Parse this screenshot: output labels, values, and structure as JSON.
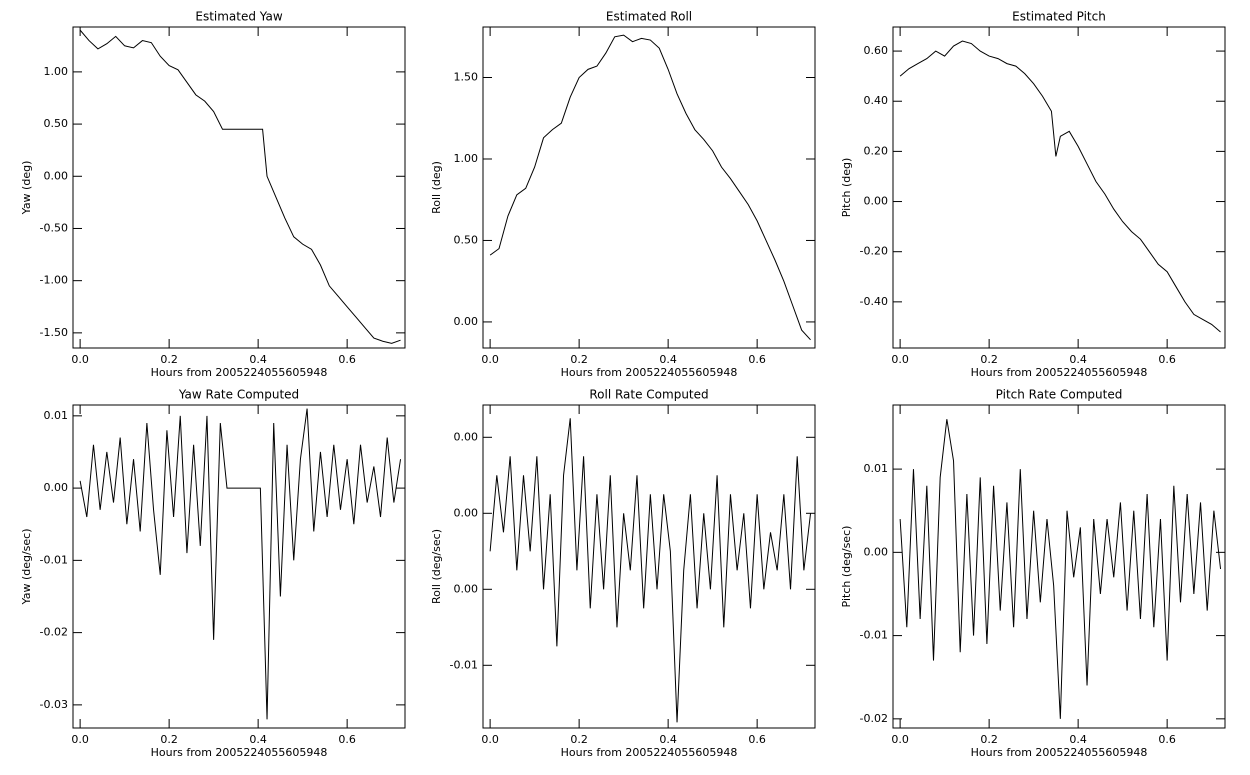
{
  "chart_data": [
    {
      "type": "line",
      "title": "Estimated Yaw",
      "xlabel": "Hours from 2005224055605948",
      "ylabel": "Yaw (deg)",
      "color": "#000000",
      "x": [
        0,
        0.02,
        0.04,
        0.06,
        0.08,
        0.1,
        0.12,
        0.14,
        0.16,
        0.18,
        0.2,
        0.22,
        0.24,
        0.26,
        0.28,
        0.3,
        0.32,
        0.34,
        0.36,
        0.38,
        0.41,
        0.42,
        0.44,
        0.46,
        0.48,
        0.5,
        0.52,
        0.54,
        0.56,
        0.58,
        0.6,
        0.62,
        0.64,
        0.66,
        0.68,
        0.7,
        0.72
      ],
      "values": [
        1.4,
        1.3,
        1.22,
        1.27,
        1.34,
        1.25,
        1.23,
        1.3,
        1.28,
        1.15,
        1.06,
        1.02,
        0.9,
        0.78,
        0.72,
        0.62,
        0.45,
        0.45,
        0.45,
        0.45,
        0.45,
        0.0,
        -0.2,
        -0.4,
        -0.58,
        -0.65,
        -0.7,
        -0.85,
        -1.05,
        -1.15,
        -1.25,
        -1.35,
        -1.45,
        -1.55,
        -1.58,
        -1.6,
        -1.57
      ],
      "xlim": [
        -0.016,
        0.73
      ],
      "xticks": [
        {
          "value": 0,
          "label": "0.0"
        },
        0.2,
        0.4,
        0.6
      ],
      "ylim": [
        -1.645,
        1.43
      ],
      "yticks": [
        {
          "value": -1.5,
          "label": "-1.50"
        },
        {
          "value": -1,
          "label": "-1.00"
        },
        {
          "value": -0.5,
          "label": "-0.50"
        },
        {
          "value": 0,
          "label": "0.00"
        },
        {
          "value": 0.5,
          "label": "0.50"
        },
        {
          "value": 1,
          "label": "1.00"
        }
      ]
    },
    {
      "type": "line",
      "title": "Estimated Roll",
      "xlabel": "Hours from 2005224055605948",
      "ylabel": "Roll (deg)",
      "color": "#000000",
      "x": [
        0,
        0.02,
        0.04,
        0.06,
        0.08,
        0.1,
        0.12,
        0.14,
        0.16,
        0.18,
        0.2,
        0.22,
        0.24,
        0.26,
        0.28,
        0.3,
        0.32,
        0.34,
        0.36,
        0.38,
        0.4,
        0.42,
        0.44,
        0.46,
        0.48,
        0.5,
        0.52,
        0.54,
        0.56,
        0.58,
        0.6,
        0.62,
        0.64,
        0.66,
        0.68,
        0.7,
        0.72
      ],
      "values": [
        0.41,
        0.45,
        0.65,
        0.78,
        0.82,
        0.95,
        1.13,
        1.18,
        1.22,
        1.38,
        1.5,
        1.55,
        1.57,
        1.65,
        1.75,
        1.76,
        1.72,
        1.74,
        1.73,
        1.68,
        1.55,
        1.4,
        1.28,
        1.18,
        1.12,
        1.05,
        0.95,
        0.88,
        0.8,
        0.72,
        0.62,
        0.5,
        0.38,
        0.25,
        0.1,
        -0.05,
        -0.11
      ],
      "xlim": [
        -0.016,
        0.73
      ],
      "xticks": [
        {
          "value": 0,
          "label": "0.0"
        },
        0.2,
        0.4,
        0.6
      ],
      "ylim": [
        -0.16,
        1.81
      ],
      "yticks": [
        {
          "value": 0,
          "label": "0.00"
        },
        {
          "value": 0.5,
          "label": "0.50"
        },
        {
          "value": 1,
          "label": "1.00"
        },
        {
          "value": 1.5,
          "label": "1.50"
        }
      ]
    },
    {
      "type": "line",
      "title": "Estimated Pitch",
      "xlabel": "Hours from 2005224055605948",
      "ylabel": "Pitch (deg)",
      "color": "#000000",
      "x": [
        0,
        0.02,
        0.04,
        0.06,
        0.08,
        0.1,
        0.12,
        0.14,
        0.16,
        0.18,
        0.2,
        0.22,
        0.24,
        0.26,
        0.28,
        0.3,
        0.32,
        0.34,
        0.35,
        0.36,
        0.38,
        0.4,
        0.42,
        0.44,
        0.46,
        0.48,
        0.5,
        0.52,
        0.54,
        0.56,
        0.58,
        0.6,
        0.62,
        0.64,
        0.66,
        0.68,
        0.7,
        0.72
      ],
      "values": [
        0.5,
        0.53,
        0.55,
        0.57,
        0.6,
        0.58,
        0.62,
        0.64,
        0.63,
        0.6,
        0.58,
        0.57,
        0.55,
        0.54,
        0.51,
        0.47,
        0.42,
        0.36,
        0.18,
        0.26,
        0.28,
        0.22,
        0.15,
        0.08,
        0.03,
        -0.03,
        -0.08,
        -0.12,
        -0.15,
        -0.2,
        -0.25,
        -0.28,
        -0.34,
        -0.4,
        -0.45,
        -0.47,
        -0.49,
        -0.52
      ],
      "xlim": [
        -0.016,
        0.73
      ],
      "xticks": [
        {
          "value": 0,
          "label": "0.0"
        },
        0.2,
        0.4,
        0.6
      ],
      "ylim": [
        -0.584,
        0.696
      ],
      "yticks": [
        {
          "value": -0.4,
          "label": "-0.40"
        },
        {
          "value": -0.2,
          "label": "-0.20"
        },
        {
          "value": 0,
          "label": "0.00"
        },
        {
          "value": 0.2,
          "label": "0.20"
        },
        {
          "value": 0.4,
          "label": "0.40"
        },
        {
          "value": 0.6,
          "label": "0.60"
        }
      ]
    },
    {
      "type": "line",
      "title": "Yaw Rate Computed",
      "xlabel": "Hours from 2005224055605948",
      "ylabel": "Yaw (deg/sec)",
      "color": "#000000",
      "x": [
        0,
        0.015,
        0.03,
        0.045,
        0.06,
        0.075,
        0.09,
        0.105,
        0.12,
        0.135,
        0.15,
        0.165,
        0.18,
        0.195,
        0.21,
        0.225,
        0.24,
        0.255,
        0.27,
        0.285,
        0.3,
        0.315,
        0.33,
        0.345,
        0.36,
        0.375,
        0.39,
        0.405,
        0.42,
        0.435,
        0.45,
        0.465,
        0.48,
        0.495,
        0.51,
        0.525,
        0.54,
        0.555,
        0.57,
        0.585,
        0.6,
        0.615,
        0.63,
        0.645,
        0.66,
        0.675,
        0.69,
        0.705,
        0.72
      ],
      "values": [
        0.001,
        -0.004,
        0.006,
        -0.003,
        0.005,
        -0.002,
        0.007,
        -0.005,
        0.004,
        -0.006,
        0.009,
        -0.003,
        -0.012,
        0.008,
        -0.004,
        0.01,
        -0.009,
        0.006,
        -0.008,
        0.01,
        -0.021,
        0.009,
        0.0,
        0.0,
        0.0,
        0.0,
        0.0,
        0.0,
        -0.032,
        0.009,
        -0.015,
        0.006,
        -0.01,
        0.004,
        0.011,
        -0.006,
        0.005,
        -0.004,
        0.006,
        -0.003,
        0.004,
        -0.005,
        0.006,
        -0.002,
        0.003,
        -0.004,
        0.007,
        -0.002,
        0.004
      ],
      "xlim": [
        -0.016,
        0.73
      ],
      "xticks": [
        {
          "value": 0,
          "label": "0.0"
        },
        0.2,
        0.4,
        0.6
      ],
      "ylim": [
        -0.0332,
        0.0115
      ],
      "yticks": [
        -0.03,
        -0.02,
        -0.01,
        {
          "value": 0,
          "label": "0.00"
        },
        0.01
      ]
    },
    {
      "type": "line",
      "title": "Roll Rate Computed",
      "xlabel": "Hours from 2005224055605948",
      "ylabel": "Roll (deg/sec)",
      "color": "#000000",
      "x": [
        0,
        0.015,
        0.03,
        0.045,
        0.06,
        0.075,
        0.09,
        0.105,
        0.12,
        0.135,
        0.15,
        0.165,
        0.18,
        0.195,
        0.21,
        0.225,
        0.24,
        0.255,
        0.27,
        0.285,
        0.3,
        0.315,
        0.33,
        0.345,
        0.36,
        0.375,
        0.39,
        0.405,
        0.42,
        0.435,
        0.45,
        0.465,
        0.48,
        0.495,
        0.51,
        0.525,
        0.54,
        0.555,
        0.57,
        0.585,
        0.6,
        0.615,
        0.63,
        0.645,
        0.66,
        0.675,
        0.69,
        0.705,
        0.72
      ],
      "values": [
        -0.002,
        0.002,
        -0.001,
        0.003,
        -0.003,
        0.002,
        -0.002,
        0.003,
        -0.004,
        0.001,
        -0.007,
        0.002,
        0.005,
        -0.003,
        0.003,
        -0.005,
        0.001,
        -0.004,
        0.002,
        -0.006,
        0.0,
        -0.003,
        0.002,
        -0.005,
        0.001,
        -0.004,
        0.001,
        -0.002,
        -0.011,
        -0.003,
        0.001,
        -0.005,
        0.0,
        -0.004,
        0.002,
        -0.006,
        0.001,
        -0.003,
        0.0,
        -0.005,
        0.001,
        -0.004,
        -0.001,
        -0.003,
        0.001,
        -0.004,
        0.003,
        -0.003,
        0.0
      ],
      "xlim": [
        -0.016,
        0.73
      ],
      "xticks": [
        {
          "value": 0,
          "label": "0.0"
        },
        0.2,
        0.4,
        0.6
      ],
      "ylim": [
        -0.0113,
        0.0057
      ],
      "yticks": [
        {
          "value": -0.008,
          "label": "-0.01"
        },
        {
          "value": -0.004,
          "label": "0.00"
        },
        {
          "value": 0,
          "label": "0.00"
        },
        {
          "value": 0.004,
          "label": "0.00"
        }
      ]
    },
    {
      "type": "line",
      "title": "Pitch Rate Computed",
      "xlabel": "Hours from 2005224055605948",
      "ylabel": "Pitch (deg/sec)",
      "color": "#000000",
      "x": [
        0,
        0.015,
        0.03,
        0.045,
        0.06,
        0.075,
        0.09,
        0.105,
        0.12,
        0.135,
        0.15,
        0.165,
        0.18,
        0.195,
        0.21,
        0.225,
        0.24,
        0.255,
        0.27,
        0.285,
        0.3,
        0.315,
        0.33,
        0.345,
        0.36,
        0.375,
        0.39,
        0.405,
        0.42,
        0.435,
        0.45,
        0.465,
        0.48,
        0.495,
        0.51,
        0.525,
        0.54,
        0.555,
        0.57,
        0.585,
        0.6,
        0.615,
        0.63,
        0.645,
        0.66,
        0.675,
        0.69,
        0.705,
        0.72
      ],
      "values": [
        0.004,
        -0.009,
        0.01,
        -0.008,
        0.008,
        -0.013,
        0.009,
        0.016,
        0.011,
        -0.012,
        0.007,
        -0.01,
        0.009,
        -0.011,
        0.008,
        -0.007,
        0.006,
        -0.009,
        0.01,
        -0.008,
        0.005,
        -0.006,
        0.004,
        -0.004,
        -0.02,
        0.005,
        -0.003,
        0.003,
        -0.016,
        0.004,
        -0.005,
        0.004,
        -0.003,
        0.006,
        -0.007,
        0.005,
        -0.008,
        0.007,
        -0.009,
        0.004,
        -0.013,
        0.008,
        -0.006,
        0.007,
        -0.005,
        0.006,
        -0.007,
        0.005,
        -0.002
      ],
      "xlim": [
        -0.016,
        0.73
      ],
      "xticks": [
        {
          "value": 0,
          "label": "0.0"
        },
        0.2,
        0.4,
        0.6
      ],
      "ylim": [
        -0.0211,
        0.0177
      ],
      "yticks": [
        -0.02,
        -0.01,
        {
          "value": 0,
          "label": "0.00"
        },
        0.01
      ]
    }
  ]
}
